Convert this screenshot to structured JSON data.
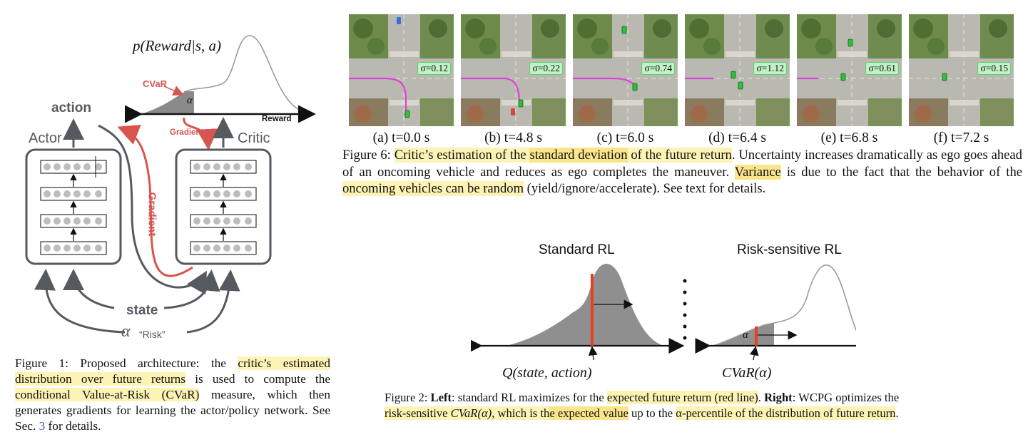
{
  "fig1": {
    "title_formula": "p(Reward|s, a)",
    "cvar_label": "CVaR",
    "alpha_symbol": "α",
    "reward_label": "Reward",
    "gradient_top_label": "Gradient",
    "gradient_side_label": "Gradient",
    "action_label": "action",
    "actor_label": "Actor",
    "critic_label": "Critic",
    "state_label": "state",
    "alpha_label": "α",
    "risk_label": "“Risk”",
    "caption": {
      "prefix": "Figure 1: Proposed architecture: the ",
      "hl1": "critic’s estimated distribution over future returns",
      "mid1": " is used to compute the ",
      "hl2": "conditional Value-at-Risk (CVaR)",
      "mid2": " measure, which then generates gradients for learning the actor/policy network. See Sec. ",
      "ref": "3",
      "suffix": " for details."
    }
  },
  "fig6": {
    "frames": [
      {
        "sigma": "σ=0.12",
        "label": "(a) t=0.0 s"
      },
      {
        "sigma": "σ=0.22",
        "label": "(b) t=4.8 s"
      },
      {
        "sigma": "σ=0.74",
        "label": "(c) t=6.0 s"
      },
      {
        "sigma": "σ=1.12",
        "label": "(d) t=6.4 s"
      },
      {
        "sigma": "σ=0.61",
        "label": "(e) t=6.8 s"
      },
      {
        "sigma": "σ=0.15",
        "label": "(f) t=7.2 s"
      }
    ],
    "caption": {
      "prefix": "Figure 6: ",
      "hl1a": "Critic’s estimation of the ",
      "hl1b": "standard deviation",
      "hl1c": " of the future return",
      "mid1": ". Uncertainty increases dramatically as ego goes ahead of an oncoming vehicle and reduces as ego completes the maneuver. ",
      "hl2": "Variance",
      "mid2": " is due to the fact that the behavior of the ",
      "hl3": "oncoming vehicles can be random",
      "suffix": " (yield/ignore/accelerate). See text for details."
    }
  },
  "fig2": {
    "left_title": "Standard RL",
    "right_title": "Risk-sensitive RL",
    "left_formula": "Q(state, action)",
    "right_formula": "CVaR(α)",
    "alpha_symbol": "α",
    "caption": {
      "prefix": "Figure 2: ",
      "left_bold": "Left",
      "part1": ": standard RL maximizes for the ",
      "hl1": "expected future return (red line)",
      "part2": ". ",
      "right_bold": "Right",
      "part3": ": WCPG optimizes the ",
      "hl2a": "risk-sensitive ",
      "hl2b": "CVaR(α)",
      "hl2c": ", which is th",
      "hl3": "e expected value",
      "part4": " up to the ",
      "hl4": "α-percentile",
      "hl5": " of the distribution of future return",
      "suffix": "."
    }
  },
  "colors": {
    "accent_red": "#d9534f",
    "network_gray": "#555a60",
    "highlight": "#fdf3b4",
    "path_magenta": "#e040e0",
    "ego_green": "#2fbf3f",
    "sigma_badge": "#bff2c4"
  }
}
